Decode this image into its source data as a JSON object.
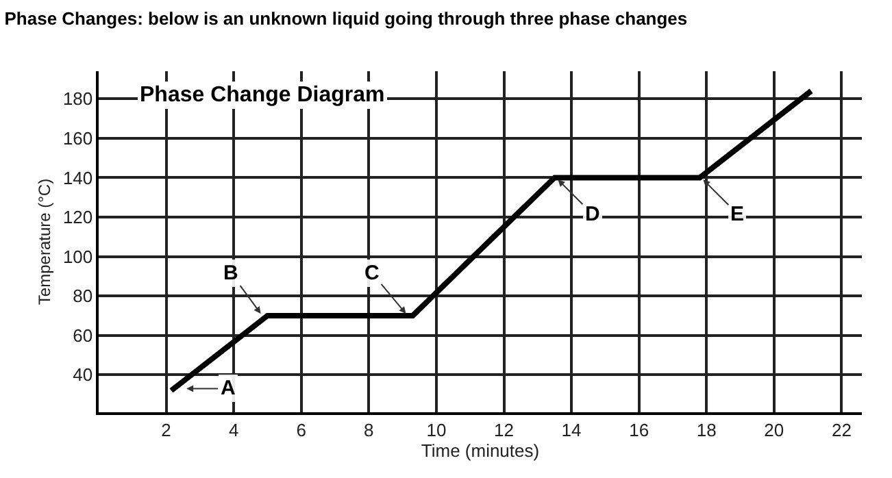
{
  "chart_data": {
    "type": "line",
    "title": "Phase Changes: below is an unknown liquid going through three phase changes",
    "subtitle": "Phase Change Diagram",
    "xlabel": "Time (minutes)",
    "ylabel": "Temperature (°C)",
    "x": [
      2.15,
      5.0,
      9.3,
      13.5,
      17.8,
      21.1
    ],
    "series": [
      {
        "color": "#000000",
        "values": [
          32,
          70,
          70,
          140,
          140,
          184
        ]
      }
    ],
    "xlim": [
      0,
      22.6
    ],
    "xticks": [
      2,
      4,
      6,
      8,
      10,
      12,
      14,
      16,
      18,
      20,
      22
    ],
    "ylim": [
      21,
      194
    ],
    "yticks": [
      40,
      60,
      80,
      100,
      120,
      140,
      160,
      180
    ],
    "grid": true,
    "marker": "none",
    "line_style": "solid",
    "annotations": [
      {
        "text": "A",
        "x": 2.6,
        "y": 33
      },
      {
        "text": "B",
        "x": 4.8,
        "y": 71
      },
      {
        "text": "C",
        "x": 9.1,
        "y": 71
      },
      {
        "text": "D",
        "x": 13.6,
        "y": 139
      },
      {
        "text": "E",
        "x": 17.9,
        "y": 139
      }
    ]
  }
}
